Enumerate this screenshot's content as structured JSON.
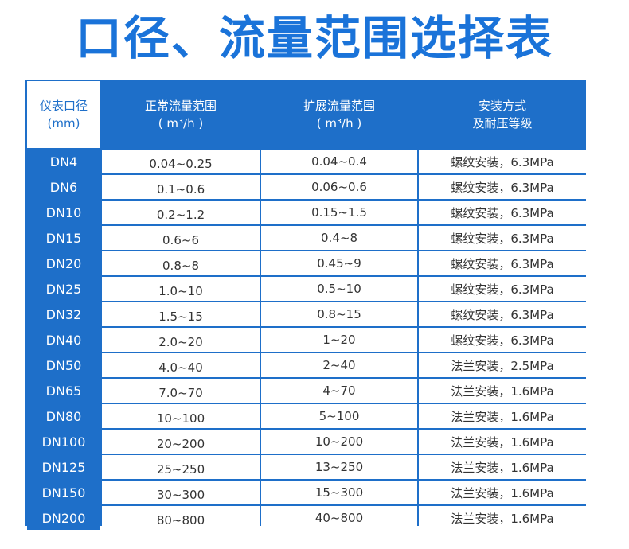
{
  "title": "口径、流量范围选择表",
  "headers": {
    "caliber_line1": "仪表口径",
    "caliber_line2": "(mm)",
    "normal_line1": "正常流量范围",
    "normal_line2": "( m³/h )",
    "extended_line1": "扩展流量范围",
    "extended_line2": "( m³/h )",
    "install_line1": "安装方式",
    "install_line2": "及耐压等级"
  },
  "rows": [
    {
      "dn": "DN4",
      "normal": "0.04~0.25",
      "extended": "0.04~0.4",
      "install": "螺纹安装，6.3MPa"
    },
    {
      "dn": "DN6",
      "normal": "0.1~0.6",
      "extended": "0.06~0.6",
      "install": "螺纹安装，6.3MPa"
    },
    {
      "dn": "DN10",
      "normal": "0.2~1.2",
      "extended": "0.15~1.5",
      "install": "螺纹安装，6.3MPa"
    },
    {
      "dn": "DN15",
      "normal": "0.6~6",
      "extended": "0.4~8",
      "install": "螺纹安装，6.3MPa"
    },
    {
      "dn": "DN20",
      "normal": "0.8~8",
      "extended": "0.45~9",
      "install": "螺纹安装，6.3MPa"
    },
    {
      "dn": "DN25",
      "normal": "1.0~10",
      "extended": "0.5~10",
      "install": "螺纹安装，6.3MPa"
    },
    {
      "dn": "DN32",
      "normal": "1.5~15",
      "extended": "0.8~15",
      "install": "螺纹安装，6.3MPa"
    },
    {
      "dn": "DN40",
      "normal": "2.0~20",
      "extended": "1~20",
      "install": "螺纹安装，6.3MPa"
    },
    {
      "dn": "DN50",
      "normal": "4.0~40",
      "extended": "2~40",
      "install": "法兰安装，2.5MPa"
    },
    {
      "dn": "DN65",
      "normal": "7.0~70",
      "extended": "4~70",
      "install": "法兰安装，1.6MPa"
    },
    {
      "dn": "DN80",
      "normal": "10~100",
      "extended": "5~100",
      "install": "法兰安装，1.6MPa"
    },
    {
      "dn": "DN100",
      "normal": "20~200",
      "extended": "10~200",
      "install": "法兰安装，1.6MPa"
    },
    {
      "dn": "DN125",
      "normal": "25~250",
      "extended": "13~250",
      "install": "法兰安装，1.6MPa"
    },
    {
      "dn": "DN150",
      "normal": "30~300",
      "extended": "15~300",
      "install": "法兰安装，1.6MPa"
    },
    {
      "dn": "DN200",
      "normal": "80~800",
      "extended": "40~800",
      "install": "法兰安装，1.6MPa"
    }
  ]
}
